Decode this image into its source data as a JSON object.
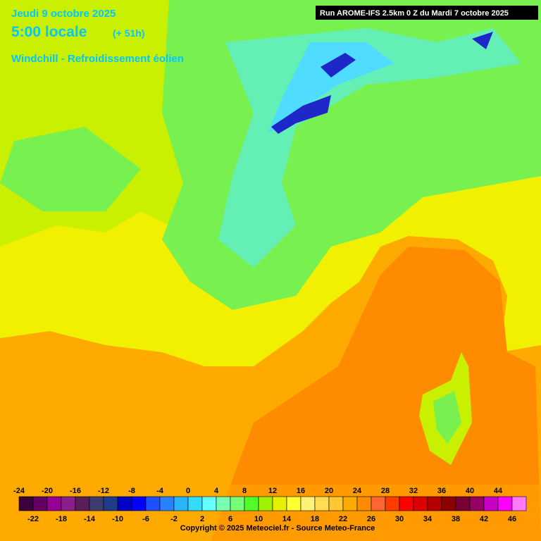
{
  "header": {
    "date": "Jeudi 9 octobre 2025",
    "time": "5:00 locale",
    "lead": "(+ 51h)",
    "parameter": "Windchill - Refroidissement éolien",
    "run": "Run AROME-IFS 2.5km 0 Z du Mardi 7 octobre 2025"
  },
  "legend": {
    "ticks": [
      -24,
      -22,
      -20,
      -18,
      -16,
      -14,
      -12,
      -10,
      -8,
      -6,
      -4,
      -2,
      0,
      2,
      4,
      6,
      8,
      10,
      12,
      14,
      16,
      18,
      20,
      22,
      24,
      26,
      28,
      30,
      32,
      34,
      36,
      38,
      40,
      42,
      44,
      46
    ],
    "colors": [
      "#3c003c",
      "#640064",
      "#960096",
      "#8c1e8c",
      "#5a1e5a",
      "#3c3c6e",
      "#1e3c8c",
      "#0000c8",
      "#0000ff",
      "#1e50ff",
      "#2882ff",
      "#28b4ff",
      "#32dcff",
      "#64ffff",
      "#78ffb4",
      "#78ff78",
      "#50ff28",
      "#a0f000",
      "#e6f000",
      "#ffff32",
      "#fff078",
      "#ffdc50",
      "#ffc832",
      "#ffaa00",
      "#ff8c00",
      "#ff6432",
      "#ff3c00",
      "#ff0000",
      "#dc0000",
      "#b40000",
      "#8c0000",
      "#780032",
      "#960064",
      "#c800c8",
      "#ff00ff",
      "#ff78ff"
    ]
  },
  "footer": {
    "copyright": "Copyright © 2025 Meteociel.fr - Source Meteo-France"
  }
}
